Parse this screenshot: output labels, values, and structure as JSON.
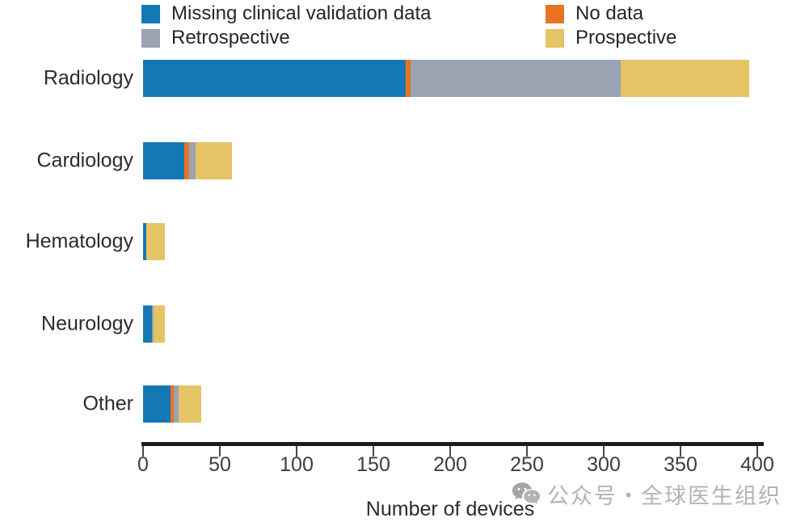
{
  "legend": {
    "items": [
      {
        "label": "Missing clinical validation data",
        "color": "#1478b5"
      },
      {
        "label": "No data",
        "color": "#e97320"
      },
      {
        "label": "Retrospective",
        "color": "#99a3b2"
      },
      {
        "label": "Prospective",
        "color": "#e4c464"
      }
    ]
  },
  "chart_data": {
    "type": "bar",
    "orientation": "horizontal",
    "stacked": true,
    "title": "",
    "xlabel": "Number of devices",
    "ylabel": "",
    "xlim": [
      0,
      400
    ],
    "xticks": [
      0,
      50,
      100,
      150,
      200,
      250,
      300,
      350,
      400
    ],
    "grid": false,
    "legend_position": "top",
    "categories": [
      "Radiology",
      "Cardiology",
      "Hematology",
      "Neurology",
      "Other"
    ],
    "series": [
      {
        "name": "Missing clinical validation data",
        "color": "#1478b5",
        "values": [
          171,
          27,
          2,
          6,
          18
        ]
      },
      {
        "name": "No data",
        "color": "#e97320",
        "values": [
          3,
          3,
          0,
          0,
          2
        ]
      },
      {
        "name": "Retrospective",
        "color": "#99a3b2",
        "values": [
          137,
          4,
          0,
          1,
          3
        ]
      },
      {
        "name": "Prospective",
        "color": "#e4c464",
        "values": [
          84,
          24,
          12,
          7,
          15
        ]
      }
    ]
  },
  "axis": {
    "tick_labels": [
      "0",
      "50",
      "100",
      "150",
      "200",
      "250",
      "300",
      "350",
      "400"
    ],
    "xlabel": "Number of devices"
  },
  "watermark": {
    "text": "公众号・全球医生组织",
    "icon": "wechat-icon"
  }
}
